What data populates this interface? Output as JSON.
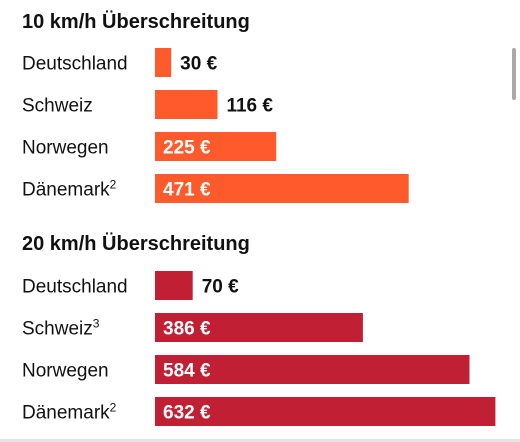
{
  "chart_data": [
    {
      "type": "bar",
      "orientation": "horizontal",
      "title": "10 km/h Überschreitung",
      "categories": [
        "Deutschland",
        "Schweiz",
        "Norwegen",
        "Dänemark"
      ],
      "footnotes": [
        "",
        "",
        "",
        "2"
      ],
      "values": [
        30,
        116,
        225,
        471
      ],
      "value_labels": [
        "30 €",
        "116 €",
        "225 €",
        "471 €"
      ],
      "color": "#ff5a2b",
      "grid": false
    },
    {
      "type": "bar",
      "orientation": "horizontal",
      "title": "20 km/h Überschreitung",
      "categories": [
        "Deutschland",
        "Schweiz",
        "Norwegen",
        "Dänemark"
      ],
      "footnotes": [
        "",
        "3",
        "",
        "2"
      ],
      "values": [
        70,
        386,
        584,
        632
      ],
      "value_labels": [
        "70 €",
        "386 €",
        "584 €",
        "632 €"
      ],
      "color": "#c01f34",
      "grid": false
    }
  ]
}
